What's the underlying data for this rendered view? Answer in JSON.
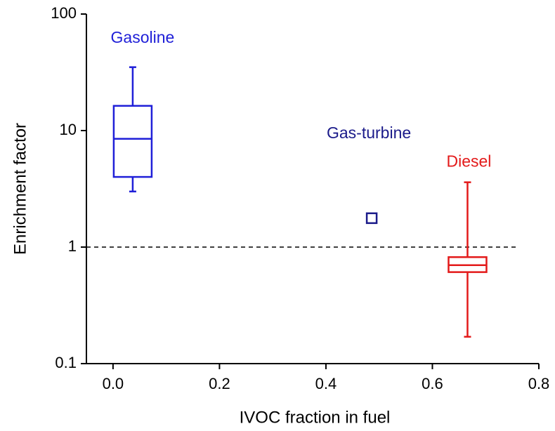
{
  "chart_data": {
    "type": "box",
    "xlabel": "IVOC fraction in fuel",
    "ylabel": "Enrichment factor",
    "xlim": [
      -0.05,
      0.8
    ],
    "xticks": [
      {
        "value": 0,
        "label": "0.0"
      },
      0.2,
      0.4,
      0.6,
      0.8
    ],
    "ylim": [
      0.1,
      100
    ],
    "yticks": [
      0.1,
      1,
      10,
      100
    ],
    "ylog": true,
    "hline": 1,
    "series": [
      {
        "name": "Gasoline",
        "color": "#1f1fd8",
        "x": 0.037,
        "whisker_low": 3.0,
        "q1": 4.0,
        "median": 8.5,
        "q3": 16.3,
        "whisker_high": 35
      },
      {
        "name": "Gas-turbine",
        "color": "#1b1b8a",
        "x": 0.486,
        "y": 1.77,
        "marker": "square"
      },
      {
        "name": "Diesel",
        "color": "#e31a1a",
        "x": 0.666,
        "whisker_low": 0.17,
        "q1": 0.61,
        "median": 0.7,
        "q3": 0.82,
        "whisker_high": 3.6
      }
    ]
  }
}
